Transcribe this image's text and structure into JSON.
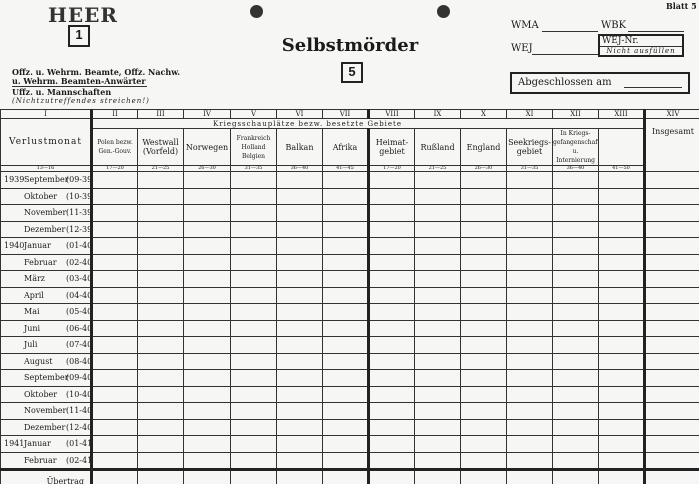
{
  "header": {
    "branch": "HEER",
    "branch_box": "1",
    "title": "Selbstmörder",
    "title_box": "5",
    "sheet": "Blatt 5",
    "wma": "WMA",
    "wbk": "WBK",
    "wej": "WEJ",
    "wej_nr": "WEJ-Nr.",
    "nicht_ausfuellen": "Nicht ausfüllen",
    "abgeschlossen": "Abgeschlossen am",
    "category_1": "Offz. u. Wehrm. Beamte, Offz. Nachw.",
    "category_2": "u. Wehrm. Beamten-Anwärter",
    "category_3": "Uffz. u. Mannschaften",
    "category_note": "(Nichtzutreffendes streichen!)"
  },
  "table": {
    "group_header": "Kriegsschauplätze bezw. besetzte Gebiete",
    "columns": [
      {
        "roman": "I",
        "name": "Verlustmonat",
        "code": "13—16"
      },
      {
        "roman": "II",
        "name": "Polen bezw. Gen.-Gouv.",
        "code": "17—20"
      },
      {
        "roman": "III",
        "name": "Westwall (Vorfeld)",
        "code": "21—25"
      },
      {
        "roman": "IV",
        "name": "Norwegen",
        "code": "26—30"
      },
      {
        "roman": "V",
        "name": "Frankreich Holland Belgien",
        "code": "31—35"
      },
      {
        "roman": "VI",
        "name": "Balkan",
        "code": "36—40"
      },
      {
        "roman": "VII",
        "name": "Afrika",
        "code": "41—45"
      },
      {
        "roman": "VIII",
        "name": "Heimat-gebiet",
        "code": "17—20"
      },
      {
        "roman": "IX",
        "name": "Rußland",
        "code": "21—25"
      },
      {
        "roman": "X",
        "name": "England",
        "code": "26—30"
      },
      {
        "roman": "XI",
        "name": "Seekriegs-gebiet",
        "code": "31—35"
      },
      {
        "roman": "XII",
        "name": "In Kriegs-gefangenschaft u. Internierung",
        "code": "36—40"
      },
      {
        "roman": "XIII",
        "name": "",
        "code": "41—50"
      },
      {
        "roman": "XIV",
        "name": "Insgesamt",
        "code": ""
      }
    ],
    "rows": [
      {
        "year": "1939",
        "month": "September",
        "code": "(09-39)"
      },
      {
        "year": "",
        "month": "Oktober",
        "code": "(10-39)"
      },
      {
        "year": "",
        "month": "November",
        "code": "(11-39)"
      },
      {
        "year": "",
        "month": "Dezember",
        "code": "(12-39)"
      },
      {
        "year": "1940",
        "month": "Januar",
        "code": "(01-40)"
      },
      {
        "year": "",
        "month": "Februar",
        "code": "(02-40)"
      },
      {
        "year": "",
        "month": "März",
        "code": "(03-40)"
      },
      {
        "year": "",
        "month": "April",
        "code": "(04-40)"
      },
      {
        "year": "",
        "month": "Mai",
        "code": "(05-40)"
      },
      {
        "year": "",
        "month": "Juni",
        "code": "(06-40)"
      },
      {
        "year": "",
        "month": "Juli",
        "code": "(07-40)"
      },
      {
        "year": "",
        "month": "August",
        "code": "(08-40)"
      },
      {
        "year": "",
        "month": "September",
        "code": "(09-40)"
      },
      {
        "year": "",
        "month": "Oktober",
        "code": "(10-40)"
      },
      {
        "year": "",
        "month": "November",
        "code": "(11-40)"
      },
      {
        "year": "",
        "month": "Dezember",
        "code": "(12-40)"
      },
      {
        "year": "1941",
        "month": "Januar",
        "code": "(01-41)"
      },
      {
        "year": "",
        "month": "Februar",
        "code": "(02-41)"
      }
    ],
    "carry_over": "Übertrag"
  }
}
